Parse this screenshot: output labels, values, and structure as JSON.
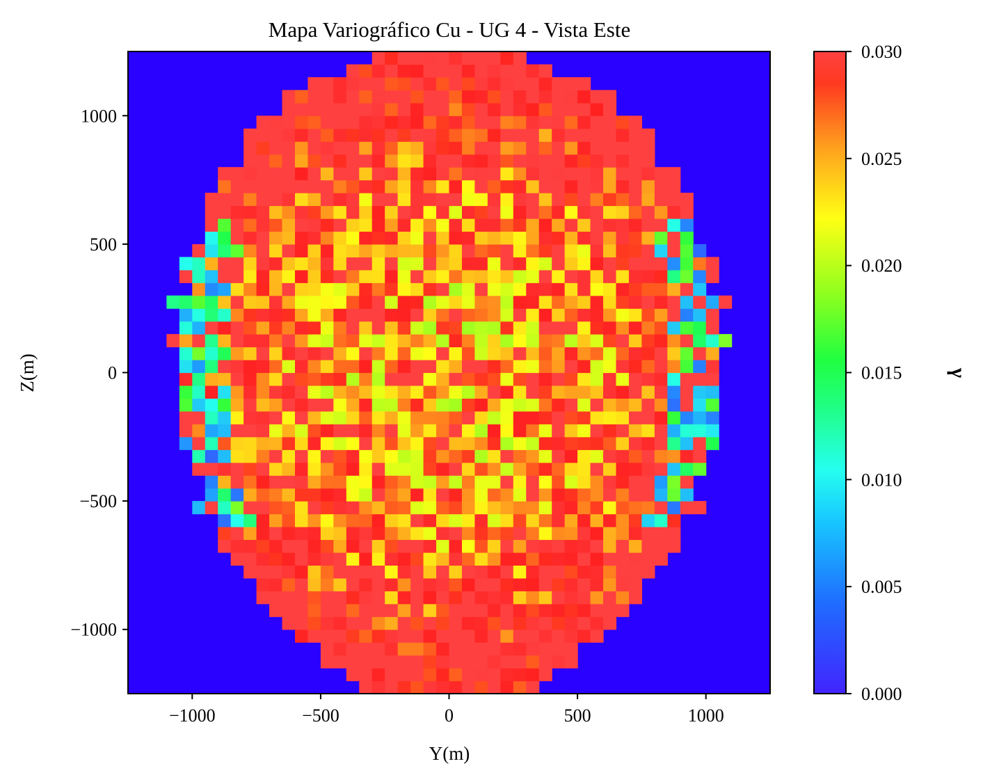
{
  "chart_data": {
    "type": "heatmap",
    "title": "Mapa Variográfico Cu - UG 4 - Vista Este",
    "xlabel": "Y(m)",
    "ylabel": "Z(m)",
    "xlim": [
      -1250,
      1250
    ],
    "ylim": [
      -1250,
      1250
    ],
    "xticks": [
      -1000,
      -500,
      0,
      500,
      1000
    ],
    "yticks": [
      -1000,
      -500,
      0,
      500,
      1000
    ],
    "xtick_labels": [
      "−1000",
      "−500",
      "0",
      "500",
      "1000"
    ],
    "ytick_labels": [
      "−1000",
      "−500",
      "0",
      "500",
      "1000"
    ],
    "colorbar": {
      "label": "γ",
      "min": 0.0,
      "max": 0.03,
      "ticks": [
        0.0,
        0.005,
        0.01,
        0.015,
        0.02,
        0.025,
        0.03
      ],
      "tick_labels": [
        "0.000",
        "0.005",
        "0.010",
        "0.015",
        "0.020",
        "0.025",
        "0.030"
      ],
      "colormap": "gist_rainbow_r",
      "colors": [
        "#4224ff",
        "#1f9dff",
        "#25ffee",
        "#20ff40",
        "#a4ff1f",
        "#ffff14",
        "#ffa01e",
        "#ff2020",
        "#ff4040"
      ]
    },
    "background_color": "#2a00ff",
    "grid": false,
    "cell_size": 50,
    "radius_profile": [
      [
        -1250,
        340
      ],
      [
        -1100,
        520
      ],
      [
        -900,
        720
      ],
      [
        -700,
        860
      ],
      [
        -500,
        960
      ],
      [
        -250,
        1040
      ],
      [
        0,
        1080
      ],
      [
        250,
        1060
      ],
      [
        500,
        1000
      ],
      [
        750,
        900
      ],
      [
        950,
        760
      ],
      [
        1100,
        580
      ],
      [
        1230,
        280
      ]
    ],
    "value_field": {
      "center_value": 0.0205,
      "edge_value": 0.03,
      "note_shape": "values increase toward the rim; blue/cyan patches along left and right flanks"
    }
  }
}
